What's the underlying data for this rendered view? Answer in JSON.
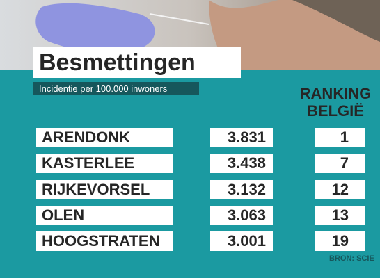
{
  "header": {
    "title": "Besmettingen",
    "subtitle": "Incidentie per 100.000 inwoners",
    "ranking_label": [
      "RANKING",
      "BELGIË"
    ]
  },
  "table": {
    "rows": [
      [
        "ARENDONK",
        "3.831",
        1
      ],
      [
        "KASTERLEE",
        "3.438",
        7
      ],
      [
        "RIJKEVORSEL",
        "3.132",
        12
      ],
      [
        "OLEN",
        "3.063",
        13
      ],
      [
        "HOOGSTRATEN",
        "3.001",
        19
      ]
    ]
  },
  "footer": {
    "source": "BRON: SCIE"
  }
}
